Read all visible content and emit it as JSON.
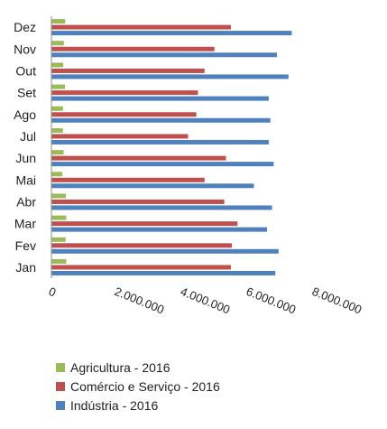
{
  "chart_data": {
    "type": "bar",
    "orientation": "horizontal",
    "categories": [
      "Jan",
      "Fev",
      "Mar",
      "Abr",
      "Mai",
      "Jun",
      "Jul",
      "Ago",
      "Set",
      "Out",
      "Nov",
      "Dez"
    ],
    "series": [
      {
        "name": "Agricultura - 2016",
        "color": "#9BBB59",
        "values": [
          450000,
          430000,
          450000,
          440000,
          330000,
          370000,
          350000,
          350000,
          410000,
          360000,
          380000,
          420000
        ]
      },
      {
        "name": "Comércio e Serviço - 2016",
        "color": "#C0504D",
        "values": [
          5450000,
          5480000,
          5650000,
          5250000,
          4650000,
          5300000,
          4150000,
          4400000,
          4450000,
          4650000,
          4950000,
          5450000
        ]
      },
      {
        "name": "Indústria - 2016",
        "color": "#4F81BD",
        "values": [
          6800000,
          6900000,
          6550000,
          6700000,
          6150000,
          6750000,
          6600000,
          6650000,
          6600000,
          7200000,
          6850000,
          7300000
        ]
      }
    ],
    "xlim": [
      0,
      8000000
    ],
    "xticks": [
      "0",
      "2.000.000",
      "4.000.000",
      "6.000.000",
      "8.000.000"
    ],
    "legend_position": "bottom"
  }
}
